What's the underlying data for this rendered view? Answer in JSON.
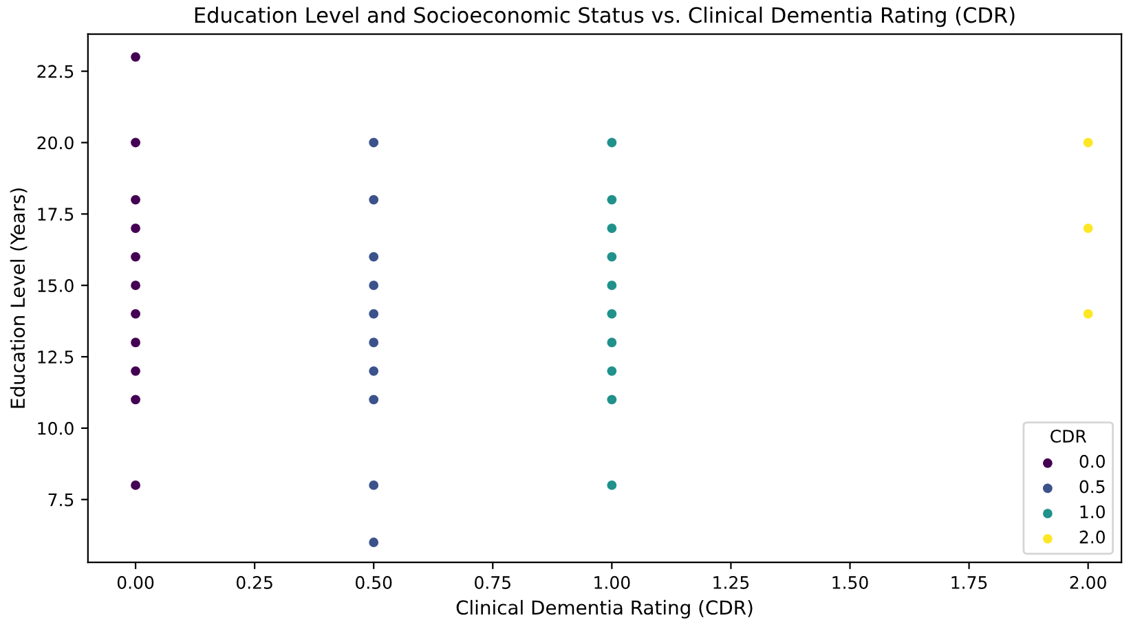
{
  "chart_data": {
    "type": "scatter",
    "title": "Education Level and Socioeconomic Status vs. Clinical Dementia Rating (CDR)",
    "xlabel": "Clinical Dementia Rating (CDR)",
    "ylabel": "Education Level (Years)",
    "legend_title": "CDR",
    "legend": "bottom right",
    "grid": false,
    "marker": "circle",
    "xlim": [
      -0.1,
      2.07
    ],
    "xticks": [
      {
        "value": 0,
        "label": "0.00"
      },
      {
        "value": 0.25,
        "label": "0.25"
      },
      {
        "value": 0.5,
        "label": "0.50"
      },
      {
        "value": 0.75,
        "label": "0.75"
      },
      {
        "value": 1,
        "label": "1.00"
      },
      {
        "value": 1.25,
        "label": "1.25"
      },
      {
        "value": 1.5,
        "label": "1.50"
      },
      {
        "value": 1.75,
        "label": "1.75"
      },
      {
        "value": 2,
        "label": "2.00"
      }
    ],
    "ylim": [
      5.3,
      23.8
    ],
    "yticks": [
      7.5,
      {
        "value": 10,
        "label": "10.0"
      },
      12.5,
      {
        "value": 15,
        "label": "15.0"
      },
      17.5,
      {
        "value": 20,
        "label": "20.0"
      },
      22.5
    ],
    "series": [
      {
        "name": "0.0",
        "color": "#440154",
        "x": [
          0,
          0,
          0,
          0,
          0,
          0,
          0,
          0,
          0,
          0,
          0
        ],
        "values": [
          23,
          20,
          18,
          17,
          16,
          15,
          14,
          13,
          12,
          11,
          8
        ]
      },
      {
        "name": "0.5",
        "color": "#3b528b",
        "x": [
          0.5,
          0.5,
          0.5,
          0.5,
          0.5,
          0.5,
          0.5,
          0.5,
          0.5,
          0.5
        ],
        "values": [
          20,
          18,
          16,
          15,
          14,
          13,
          12,
          11,
          8,
          6
        ]
      },
      {
        "name": "1.0",
        "color": "#21918c",
        "x": [
          1,
          1,
          1,
          1,
          1,
          1,
          1,
          1,
          1,
          1
        ],
        "values": [
          20,
          18,
          17,
          16,
          15,
          14,
          13,
          12,
          11,
          8
        ]
      },
      {
        "name": "2.0",
        "color": "#fde725",
        "x": [
          2,
          2,
          2
        ],
        "values": [
          20,
          17,
          14
        ]
      }
    ]
  }
}
